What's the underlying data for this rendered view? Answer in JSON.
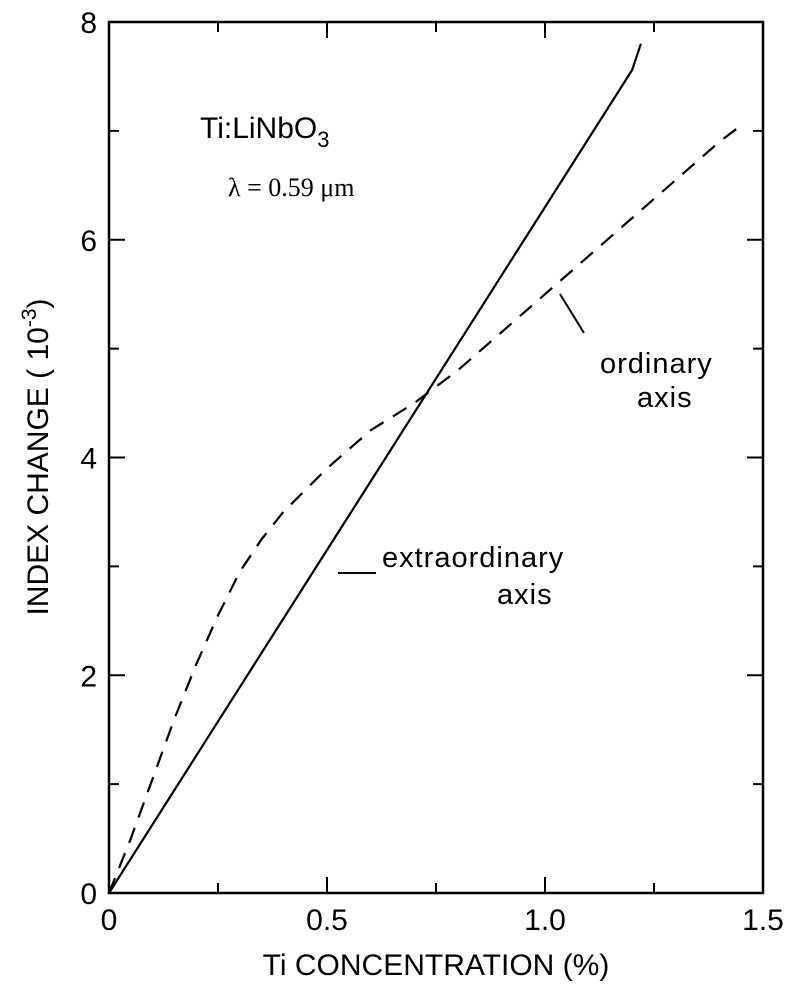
{
  "chart_data": {
    "type": "line",
    "title": "Ti:LiNbO",
    "title_subscript": "3",
    "subtitle": "λ = 0.59 μm",
    "xlabel": "Ti CONCENTRATION (%)",
    "ylabel": "INDEX CHANGE ( 10",
    "ylabel_exponent": "-3",
    "ylabel_close": ")",
    "xlim": [
      0,
      1.5
    ],
    "ylim": [
      0,
      8
    ],
    "x_ticks": [
      0,
      0.5,
      1.0,
      1.5
    ],
    "x_tick_labels": [
      "0",
      "0.5",
      "1.0",
      "1.5"
    ],
    "y_ticks": [
      0,
      2,
      4,
      6,
      8
    ],
    "y_tick_labels": [
      "0",
      "2",
      "4",
      "6",
      "8"
    ],
    "grid": false,
    "legend": "none",
    "series": [
      {
        "name": "extraordinary axis",
        "style": "solid",
        "x": [
          0,
          0.1,
          0.2,
          0.3,
          0.4,
          0.5,
          0.6,
          0.7,
          0.8,
          0.9,
          1.0,
          1.1,
          1.2,
          1.22
        ],
        "y": [
          0,
          0.63,
          1.26,
          1.89,
          2.52,
          3.15,
          3.78,
          4.41,
          5.04,
          5.67,
          6.3,
          6.93,
          7.56,
          7.8
        ]
      },
      {
        "name": "ordinary axis",
        "style": "dashed",
        "x": [
          0,
          0.05,
          0.1,
          0.15,
          0.2,
          0.25,
          0.3,
          0.35,
          0.4,
          0.5,
          0.6,
          0.7,
          0.8,
          0.9,
          1.0,
          1.1,
          1.2,
          1.3,
          1.4,
          1.45
        ],
        "y": [
          0,
          0.5,
          1.05,
          1.6,
          2.1,
          2.55,
          2.95,
          3.25,
          3.5,
          3.9,
          4.25,
          4.5,
          4.8,
          5.15,
          5.5,
          5.85,
          6.2,
          6.55,
          6.9,
          7.05
        ]
      }
    ],
    "annotations": [
      {
        "lines": [
          "ordinary",
          "axis"
        ],
        "target_series": "ordinary axis"
      },
      {
        "lines": [
          "extraordinary",
          "axis"
        ],
        "target_series": "extraordinary axis"
      }
    ]
  }
}
